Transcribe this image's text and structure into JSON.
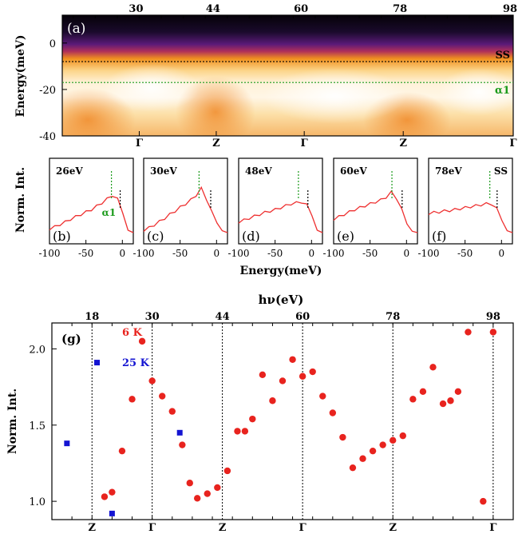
{
  "chart_data": [
    {
      "panel": "(a)",
      "type": "heatmap",
      "ylabel": "Energy(meV)",
      "ylim": [
        -40,
        12
      ],
      "y_ticks": [
        0,
        -20,
        -40
      ],
      "top_tick_labels": [
        "30",
        "44",
        "60",
        "78",
        "98"
      ],
      "top_tick_values": [
        30,
        44,
        60,
        78,
        98
      ],
      "bottom_tick_labels": [
        "Γ",
        "Z",
        "Γ",
        "Z",
        "Γ"
      ],
      "bottom_tick_values": [
        30,
        44,
        60,
        78,
        98
      ],
      "xlim": [
        16,
        98
      ],
      "reference_lines": [
        {
          "name": "SS",
          "energy": -8,
          "color": "#000000"
        },
        {
          "name": "α1",
          "energy": -17,
          "color": "#1a9a1a"
        }
      ]
    },
    {
      "type": "line",
      "ylabel": "Norm. Int.",
      "xlabel": "Energy(meV)",
      "xlim": [
        -100,
        15
      ],
      "x_ticks": [
        -100,
        -50,
        0
      ],
      "panels": [
        {
          "label": "(b)",
          "photon": "26eV",
          "peak": -15,
          "edge": -3,
          "tag": "α1",
          "profile": [
            0.08,
            0.12,
            0.17,
            0.22,
            0.28,
            0.33,
            0.38,
            0.43,
            0.48,
            0.55,
            0.62,
            0.7,
            0.78,
            0.72,
            0.4,
            0.05,
            0.0
          ]
        },
        {
          "label": "(c)",
          "photon": "30eV",
          "peak": -24,
          "edge": -8,
          "tag": "",
          "profile": [
            0.05,
            0.1,
            0.16,
            0.23,
            0.3,
            0.38,
            0.45,
            0.53,
            0.6,
            0.68,
            0.78,
            0.92,
            0.7,
            0.45,
            0.2,
            0.04,
            0.0
          ]
        },
        {
          "label": "(d)",
          "photon": "48eV",
          "peak": -18,
          "edge": -5,
          "tag": "",
          "profile": [
            0.22,
            0.26,
            0.3,
            0.34,
            0.38,
            0.42,
            0.45,
            0.48,
            0.52,
            0.56,
            0.6,
            0.62,
            0.64,
            0.6,
            0.35,
            0.05,
            0.0
          ]
        },
        {
          "label": "(e)",
          "photon": "60eV",
          "peak": -20,
          "edge": -6,
          "tag": "",
          "profile": [
            0.28,
            0.33,
            0.38,
            0.43,
            0.48,
            0.52,
            0.56,
            0.6,
            0.64,
            0.68,
            0.74,
            0.84,
            0.72,
            0.5,
            0.18,
            0.03,
            0.0
          ]
        },
        {
          "label": "(f)",
          "photon": "78eV",
          "peak": -16,
          "edge": -6,
          "tag": "SS",
          "profile": [
            0.4,
            0.42,
            0.43,
            0.45,
            0.46,
            0.48,
            0.5,
            0.52,
            0.54,
            0.56,
            0.58,
            0.6,
            0.6,
            0.52,
            0.25,
            0.04,
            0.0
          ]
        }
      ]
    },
    {
      "panel": "(g)",
      "type": "scatter",
      "title": "hν(eV)",
      "ylabel": "Norm. Int.",
      "xlim": [
        10,
        102
      ],
      "ylim": [
        0.88,
        2.17
      ],
      "y_ticks": [
        "1.0",
        "1.5",
        "2.0"
      ],
      "top_tick_labels": [
        "18",
        "30",
        "44",
        "60",
        "78",
        "98"
      ],
      "top_tick_values": [
        18,
        30,
        44,
        60,
        78,
        98
      ],
      "bottom_tick_labels": [
        "Z",
        "Γ",
        "Z",
        "Γ",
        "Z",
        "Γ"
      ],
      "bottom_tick_values": [
        18,
        30,
        44,
        60,
        78,
        98
      ],
      "series": [
        {
          "name": "6 K",
          "color": "#e8231e",
          "marker": "circle",
          "x": [
            20.5,
            22,
            24,
            26,
            28,
            30,
            32,
            34,
            36,
            37.5,
            39,
            41,
            43,
            45,
            47,
            48.5,
            50,
            52,
            54,
            56,
            58,
            60,
            62,
            64,
            66,
            68,
            70,
            72,
            74,
            76,
            78,
            80,
            82,
            84,
            86,
            88,
            89.5,
            91,
            93,
            96,
            98
          ],
          "y": [
            1.03,
            1.06,
            1.33,
            1.67,
            2.05,
            1.79,
            1.69,
            1.59,
            1.37,
            1.12,
            1.02,
            1.05,
            1.09,
            1.2,
            1.46,
            1.46,
            1.54,
            1.83,
            1.66,
            1.79,
            1.93,
            1.82,
            1.85,
            1.69,
            1.58,
            1.42,
            1.22,
            1.28,
            1.33,
            1.37,
            1.4,
            1.43,
            1.67,
            1.72,
            1.88,
            1.64,
            1.66,
            1.72,
            2.11,
            1.0,
            2.11
          ]
        },
        {
          "name": "25 K",
          "color": "#1414d2",
          "marker": "square",
          "x": [
            13,
            22,
            35.5,
            19
          ],
          "y": [
            1.38,
            0.92,
            1.45,
            1.91
          ]
        }
      ]
    }
  ]
}
